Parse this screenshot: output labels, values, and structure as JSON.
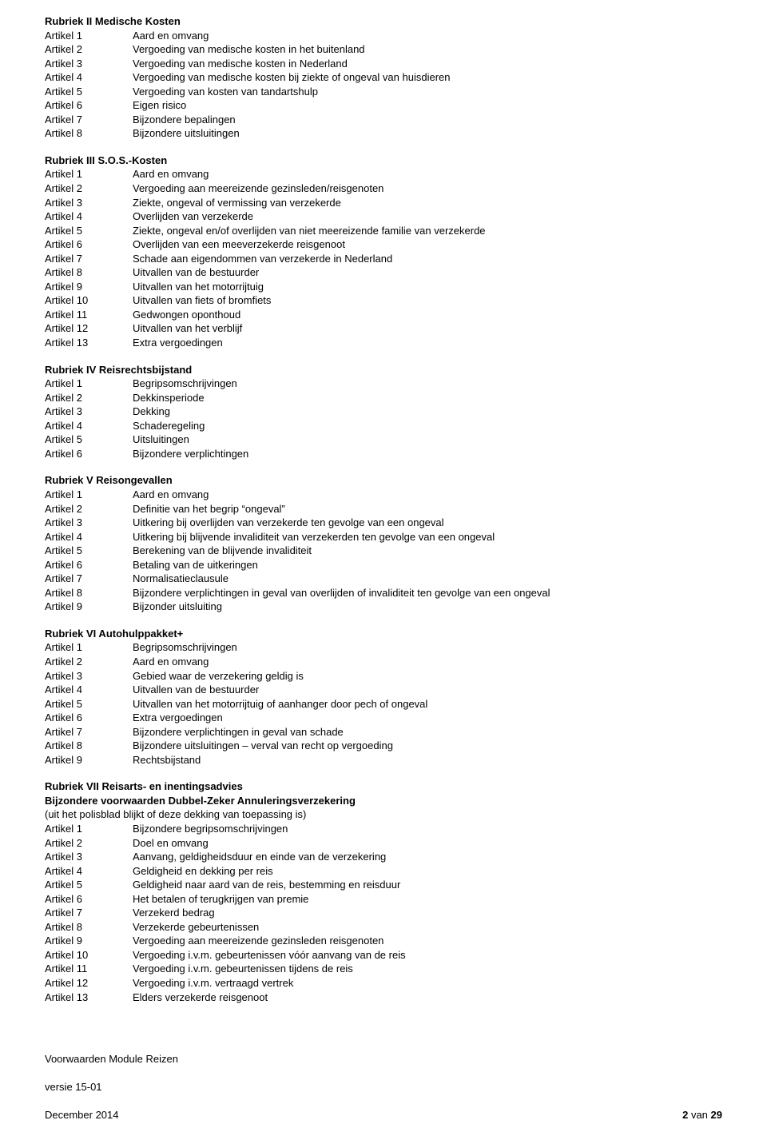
{
  "sections": [
    {
      "title": "Rubriek II Medische Kosten",
      "items": [
        {
          "label": "Artikel 1",
          "desc": "Aard en omvang"
        },
        {
          "label": "Artikel 2",
          "desc": "Vergoeding van medische kosten in het buitenland"
        },
        {
          "label": "Artikel 3",
          "desc": "Vergoeding van medische kosten in Nederland"
        },
        {
          "label": "Artikel 4",
          "desc": "Vergoeding van medische kosten bij ziekte of ongeval van huisdieren"
        },
        {
          "label": "Artikel 5",
          "desc": "Vergoeding van kosten van tandartshulp"
        },
        {
          "label": "Artikel 6",
          "desc": "Eigen risico"
        },
        {
          "label": "Artikel 7",
          "desc": "Bijzondere bepalingen"
        },
        {
          "label": "Artikel 8",
          "desc": "Bijzondere uitsluitingen"
        }
      ]
    },
    {
      "title": "Rubriek III S.O.S.-Kosten",
      "items": [
        {
          "label": "Artikel 1",
          "desc": "Aard en omvang"
        },
        {
          "label": "Artikel 2",
          "desc": "Vergoeding aan meereizende gezinsleden/reisgenoten"
        },
        {
          "label": "Artikel 3",
          "desc": "Ziekte, ongeval of vermissing van verzekerde"
        },
        {
          "label": "Artikel 4",
          "desc": "Overlijden van verzekerde"
        },
        {
          "label": "Artikel 5",
          "desc": "Ziekte, ongeval en/of overlijden van niet meereizende familie van verzekerde"
        },
        {
          "label": "Artikel 6",
          "desc": "Overlijden van een meeverzekerde reisgenoot"
        },
        {
          "label": "Artikel 7",
          "desc": "Schade aan eigendommen van verzekerde in Nederland"
        },
        {
          "label": "Artikel 8",
          "desc": "Uitvallen van de bestuurder"
        },
        {
          "label": "Artikel 9",
          "desc": "Uitvallen van het motorrijtuig"
        },
        {
          "label": "Artikel 10",
          "desc": "Uitvallen van fiets of bromfiets"
        },
        {
          "label": "Artikel 11",
          "desc": "Gedwongen oponthoud"
        },
        {
          "label": "Artikel 12",
          "desc": "Uitvallen van het verblijf"
        },
        {
          "label": "Artikel 13",
          "desc": "Extra vergoedingen"
        }
      ]
    },
    {
      "title": "Rubriek IV Reisrechtsbijstand",
      "items": [
        {
          "label": "Artikel 1",
          "desc": "Begripsomschrijvingen"
        },
        {
          "label": "Artikel 2",
          "desc": "Dekkinsperiode"
        },
        {
          "label": "Artikel 3",
          "desc": "Dekking"
        },
        {
          "label": "Artikel 4",
          "desc": "Schaderegeling"
        },
        {
          "label": "Artikel 5",
          "desc": "Uitsluitingen"
        },
        {
          "label": "Artikel 6",
          "desc": "Bijzondere verplichtingen"
        }
      ]
    },
    {
      "title": "Rubriek V Reisongevallen",
      "items": [
        {
          "label": "Artikel 1",
          "desc": "Aard en omvang"
        },
        {
          "label": "Artikel 2",
          "desc": "Definitie van het begrip “ongeval”"
        },
        {
          "label": "Artikel 3",
          "desc": "Uitkering bij overlijden van verzekerde ten gevolge van een ongeval"
        },
        {
          "label": "Artikel 4",
          "desc": "Uitkering bij blijvende invaliditeit van verzekerden ten gevolge van een ongeval"
        },
        {
          "label": "Artikel 5",
          "desc": "Berekening van de blijvende invaliditeit"
        },
        {
          "label": "Artikel 6",
          "desc": "Betaling van de uitkeringen"
        },
        {
          "label": "Artikel 7",
          "desc": "Normalisatieclausule"
        },
        {
          "label": "Artikel 8",
          "desc": "Bijzondere verplichtingen in geval van overlijden of invaliditeit ten gevolge van een ongeval"
        },
        {
          "label": "Artikel 9",
          "desc": "Bijzonder uitsluiting"
        }
      ]
    },
    {
      "title": "Rubriek VI Autohulppakket+",
      "items": [
        {
          "label": "Artikel 1",
          "desc": "Begripsomschrijvingen"
        },
        {
          "label": "Artikel 2",
          "desc": "Aard en omvang"
        },
        {
          "label": "Artikel 3",
          "desc": "Gebied waar de verzekering geldig is"
        },
        {
          "label": "Artikel 4",
          "desc": "Uitvallen van de bestuurder"
        },
        {
          "label": "Artikel 5",
          "desc": "Uitvallen van het motorrijtuig of aanhanger door pech of ongeval"
        },
        {
          "label": "Artikel 6",
          "desc": "Extra vergoedingen"
        },
        {
          "label": "Artikel 7",
          "desc": "Bijzondere verplichtingen in geval van schade"
        },
        {
          "label": "Artikel 8",
          "desc": "Bijzondere uitsluitingen – verval van recht op vergoeding"
        },
        {
          "label": "Artikel 9",
          "desc": "Rechtsbijstand"
        }
      ]
    },
    {
      "title": "Rubriek VII Reisarts- en inentingsadvies",
      "subtitle": "Bijzondere voorwaarden Dubbel-Zeker Annuleringsverzekering",
      "paren": "(uit het polisblad blijkt of deze dekking van toepassing is)",
      "items": [
        {
          "label": "Artikel 1",
          "desc": "Bijzondere begripsomschrijvingen"
        },
        {
          "label": "Artikel 2",
          "desc": "Doel en omvang"
        },
        {
          "label": "Artikel 3",
          "desc": "Aanvang, geldigheidsduur en einde van de verzekering"
        },
        {
          "label": "Artikel 4",
          "desc": "Geldigheid en dekking per reis"
        },
        {
          "label": "Artikel 5",
          "desc": "Geldigheid naar aard van de reis, bestemming en reisduur"
        },
        {
          "label": "Artikel 6",
          "desc": "Het betalen of terugkrijgen van premie"
        },
        {
          "label": "Artikel 7",
          "desc": "Verzekerd bedrag"
        },
        {
          "label": "Artikel 8",
          "desc": "Verzekerde gebeurtenissen"
        },
        {
          "label": "Artikel 9",
          "desc": "Vergoeding aan meereizende gezinsleden reisgenoten"
        },
        {
          "label": "Artikel 10",
          "desc": "Vergoeding i.v.m. gebeurtenissen vóór aanvang van de reis"
        },
        {
          "label": "Artikel 11",
          "desc": "Vergoeding i.v.m. gebeurtenissen tijdens de reis"
        },
        {
          "label": "Artikel 12",
          "desc": "Vergoeding i.v.m. vertraagd vertrek"
        },
        {
          "label": "Artikel 13",
          "desc": "Elders verzekerde reisgenoot"
        }
      ]
    }
  ],
  "footer": {
    "left_line1": "Voorwaarden Module Reizen",
    "left_line2": "versie 15-01",
    "left_line3": "December 2014",
    "right_page": "2",
    "right_of": " van ",
    "right_total": "29"
  }
}
